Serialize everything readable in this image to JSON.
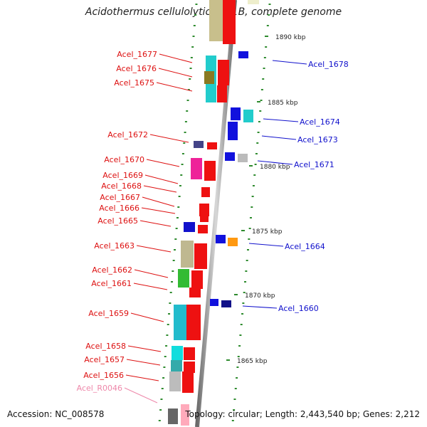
{
  "title": "Acidothermus cellulolyticus 11B, complete genome",
  "accession": "Accession: NC_008578",
  "topology": "Topology: circular; Length: 2,443,540 bp; Genes: 2,212",
  "ruler": [
    "1890 kbp",
    "1885 kbp",
    "1880 kbp",
    "1875 kbp",
    "1870 kbp",
    "1865 kbp"
  ],
  "left_labels": [
    "Acel_1677",
    "Acel_1676",
    "Acel_1675",
    "Acel_1672",
    "Acel_1670",
    "Acel_1669",
    "Acel_1668",
    "Acel_1667",
    "Acel_1666",
    "Acel_1665",
    "Acel_1663",
    "Acel_1662",
    "Acel_1661",
    "Acel_1659",
    "Acel_1658",
    "Acel_1657",
    "Acel_1656",
    "Acel_R0046"
  ],
  "right_labels": [
    "Acel_1678",
    "Acel_1674",
    "Acel_1673",
    "Acel_1671",
    "Acel_1664",
    "Acel_1660"
  ],
  "colors": {
    "left_label": "#dd1111",
    "right_label": "#1111cc",
    "rna_label": "#ee88aa",
    "tick": "#2e8b2e",
    "backbone": "#8a8a8a"
  }
}
